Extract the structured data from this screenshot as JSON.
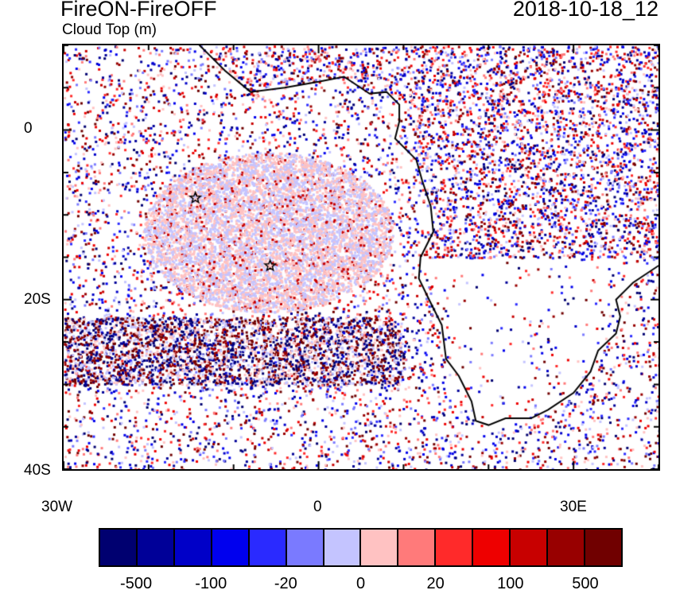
{
  "title": "FireON-FireOFF",
  "subtitle": "Cloud Top (m)",
  "date": "2018-10-18_12",
  "chart_data": {
    "type": "heatmap",
    "variable": "Cloud Top difference (m)",
    "lon_range": [
      -30,
      40
    ],
    "lat_range": [
      -40,
      10
    ],
    "x_ticks": [
      {
        "value": -30,
        "label": "30W"
      },
      {
        "value": 0,
        "label": "0"
      },
      {
        "value": 30,
        "label": "30E"
      }
    ],
    "y_ticks": [
      {
        "value": 0,
        "label": "0"
      },
      {
        "value": -20,
        "label": "20S"
      },
      {
        "value": -40,
        "label": "40S"
      }
    ],
    "markers": [
      {
        "type": "star",
        "lon": -14.5,
        "lat": -8
      },
      {
        "type": "star",
        "lon": -5.7,
        "lat": -16
      }
    ],
    "colorbar": {
      "colors": [
        "#000070",
        "#000098",
        "#0000c8",
        "#0000ee",
        "#2a2aff",
        "#7a7aff",
        "#c4c4ff",
        "#ffc2c2",
        "#ff7a7a",
        "#ff2a2a",
        "#ee0000",
        "#c80000",
        "#980000",
        "#700000"
      ],
      "labels": [
        "-500",
        "-100",
        "-20",
        "0",
        "20",
        "100",
        "500"
      ]
    }
  }
}
